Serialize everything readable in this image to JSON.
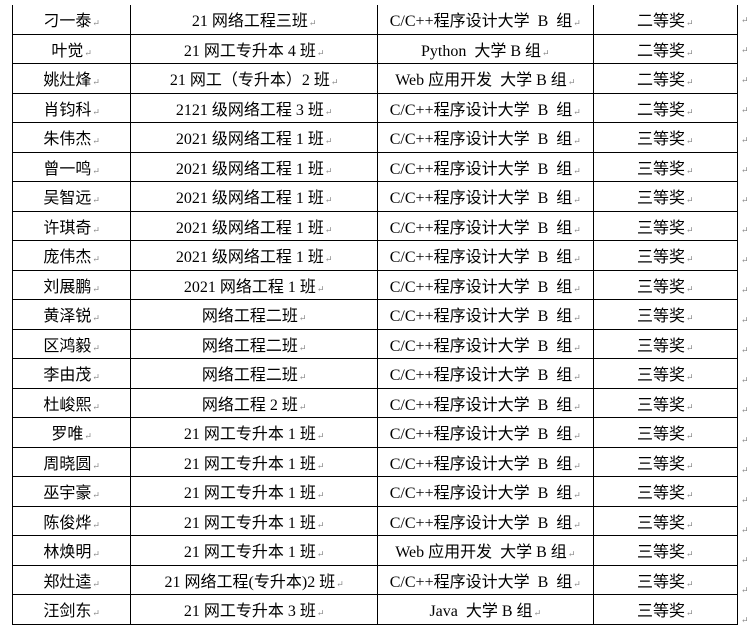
{
  "table": {
    "rows": [
      {
        "name": "刁一泰",
        "class": "21 网络工程三班",
        "contest": "C/C++程序设计大学  B  组",
        "award": "二等奖"
      },
      {
        "name": "叶觉",
        "class": "21 网工专升本 4 班",
        "contest": "Python  大学 B 组",
        "award": "二等奖"
      },
      {
        "name": "姚灶烽",
        "class": "21 网工（专升本）2 班",
        "contest": "Web 应用开发  大学 B 组",
        "award": "二等奖"
      },
      {
        "name": "肖钧科",
        "class": "2121 级网络工程 3 班",
        "contest": "C/C++程序设计大学  B  组",
        "award": "二等奖"
      },
      {
        "name": "朱伟杰",
        "class": "2021 级网络工程 1 班",
        "contest": "C/C++程序设计大学  B  组",
        "award": "三等奖"
      },
      {
        "name": "曾一鸣",
        "class": "2021 级网络工程 1 班",
        "contest": "C/C++程序设计大学  B  组",
        "award": "三等奖"
      },
      {
        "name": "吴智远",
        "class": "2021 级网络工程 1 班",
        "contest": "C/C++程序设计大学  B  组",
        "award": "三等奖"
      },
      {
        "name": "许琪奇",
        "class": "2021 级网络工程 1 班",
        "contest": "C/C++程序设计大学  B  组",
        "award": "三等奖"
      },
      {
        "name": "庞伟杰",
        "class": "2021 级网络工程 1 班",
        "contest": "C/C++程序设计大学  B  组",
        "award": "三等奖"
      },
      {
        "name": "刘展鹏",
        "class": "2021 网络工程 1 班",
        "contest": "C/C++程序设计大学  B  组",
        "award": "三等奖"
      },
      {
        "name": "黄泽锐",
        "class": "网络工程二班",
        "contest": "C/C++程序设计大学  B  组",
        "award": "三等奖"
      },
      {
        "name": "区鸿毅",
        "class": "网络工程二班",
        "contest": "C/C++程序设计大学  B  组",
        "award": "三等奖"
      },
      {
        "name": "李由茂",
        "class": "网络工程二班",
        "contest": "C/C++程序设计大学  B  组",
        "award": "三等奖"
      },
      {
        "name": "杜峻熙",
        "class": "网络工程 2 班",
        "contest": "C/C++程序设计大学  B  组",
        "award": "三等奖"
      },
      {
        "name": "罗唯",
        "class": "21 网工专升本 1 班",
        "contest": "C/C++程序设计大学  B  组",
        "award": "三等奖"
      },
      {
        "name": "周晓圆",
        "class": "21 网工专升本 1 班",
        "contest": "C/C++程序设计大学  B  组",
        "award": "三等奖"
      },
      {
        "name": "巫宇豪",
        "class": "21 网工专升本 1 班",
        "contest": "C/C++程序设计大学  B  组",
        "award": "三等奖"
      },
      {
        "name": "陈俊烨",
        "class": "21 网工专升本 1 班",
        "contest": "C/C++程序设计大学  B  组",
        "award": "三等奖"
      },
      {
        "name": "林焕明",
        "class": "21 网工专升本 1 班",
        "contest": "Web 应用开发  大学 B 组",
        "award": "三等奖"
      },
      {
        "name": "郑灶逵",
        "class": "21 网络工程(专升本)2 班",
        "contest": "C/C++程序设计大学  B  组",
        "award": "三等奖"
      },
      {
        "name": "汪剑东",
        "class": "21 网工专升本 3 班",
        "contest": "Java  大学 B 组",
        "award": "三等奖"
      }
    ]
  }
}
